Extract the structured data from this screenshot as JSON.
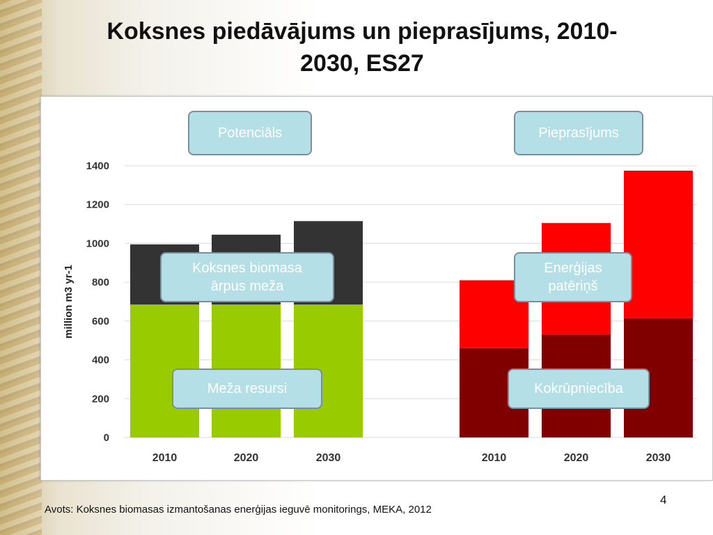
{
  "slide": {
    "title": "Koksnes piedāvājums un pieprasījums, 2010-\n2030, ES27",
    "source": "Avots: Koksnes biomasas izmantošanas enerģijas ieguvē monitorings, MEKA, 2012",
    "page_number": "4"
  },
  "callouts": {
    "potential": "Potenciāls",
    "demand": "Pieprasījums",
    "biomass_outside_forest": "Koksnes biomasa\nārpus meža",
    "energy_consumption": "Enerģijas\npatēriņš",
    "forest_resources": "Meža resursi",
    "wood_industry": "Kokrūpniecība"
  },
  "colors": {
    "forest_resources": "#99cc00",
    "outside_forest": "#333333",
    "industry": "#800000",
    "energy": "#ff0000"
  },
  "chart_data": {
    "type": "bar",
    "stacked": true,
    "ylabel": "million m3 yr-1",
    "ylim": [
      0,
      1400
    ],
    "yticks": [
      0,
      200,
      400,
      600,
      800,
      1000,
      1200,
      1400
    ],
    "grid": true,
    "groups": [
      {
        "categories": [
          "2010",
          "2020",
          "2030"
        ],
        "series": [
          {
            "values": [
              685,
              685,
              685
            ]
          },
          {
            "values": [
              310,
              360,
              430
            ]
          }
        ]
      },
      {
        "categories": [
          "2010",
          "2020",
          "2030"
        ],
        "series": [
          {
            "values": [
              460,
              530,
              615
            ]
          },
          {
            "values": [
              350,
              575,
              760
            ]
          }
        ]
      }
    ]
  }
}
